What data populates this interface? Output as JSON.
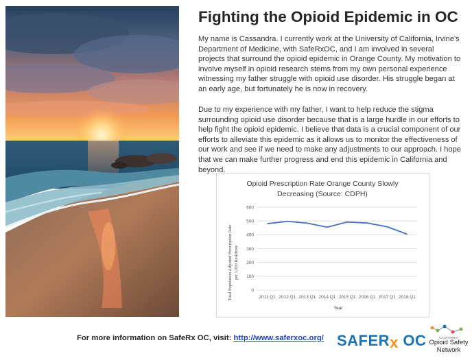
{
  "title": "Fighting the Opioid Epidemic in OC",
  "paragraphs": [
    "My name is Cassandra. I currently work at the University of California, Irvine's Department of Medicine, with SafeRxOC, and I am involved in several projects that surround the opioid epidemic in Orange County. My motivation to involve myself in opioid research stems from my own personal experience witnessing my father struggle with opioid use disorder. His struggle began at an early age, but fortunately he is now in recovery.",
    "Due to my experience with my father, I want to help reduce the stigma surrounding opioid use disorder because that is a large hurdle in our efforts to help fight the opioid epidemic. I believe that data is a crucial component of our efforts to alleviate this epidemic as it allows us to monitor the effectiveness of our work and see if we need to make any adjustments to our approach. I hope that we can make further progress and end this epidemic in California and beyond."
  ],
  "footer": {
    "text": "For more information on SafeRx OC, visit:",
    "link": "http://www.saferxoc.org/"
  },
  "logos": {
    "saferx_left": "SAFER",
    "saferx_rx": "x",
    "saferx_right": " OC",
    "cosn_small": "CALIFORNIA",
    "cosn_line1": "Opioid Safety",
    "cosn_line2": "Network"
  },
  "colors": {
    "line": "#4472c4",
    "grid": "#d9d9d9",
    "link": "#1f3fcf",
    "brand_blue": "#1b73b8",
    "brand_orange": "#f0901e"
  },
  "chart_data": {
    "type": "line",
    "title_lines": [
      "Opioid Prescription Rate Orange County Slowly",
      "Decreasing (Source: CDPH)"
    ],
    "categories": [
      "2011 Q1",
      "2012 Q1",
      "2013 Q1",
      "2014 Q1",
      "2015 Q1",
      "2016 Q1",
      "2017 Q1",
      "2018 Q1"
    ],
    "values": [
      480,
      497,
      484,
      455,
      492,
      485,
      458,
      404
    ],
    "xlabel": "Year",
    "ylabel_lines": [
      "Total Population Adjusted Prescription Rate",
      "per 1,000 Residents"
    ],
    "yticks": [
      0,
      100,
      200,
      300,
      400,
      500,
      600
    ],
    "ylim": [
      0,
      600
    ],
    "grid": true
  }
}
